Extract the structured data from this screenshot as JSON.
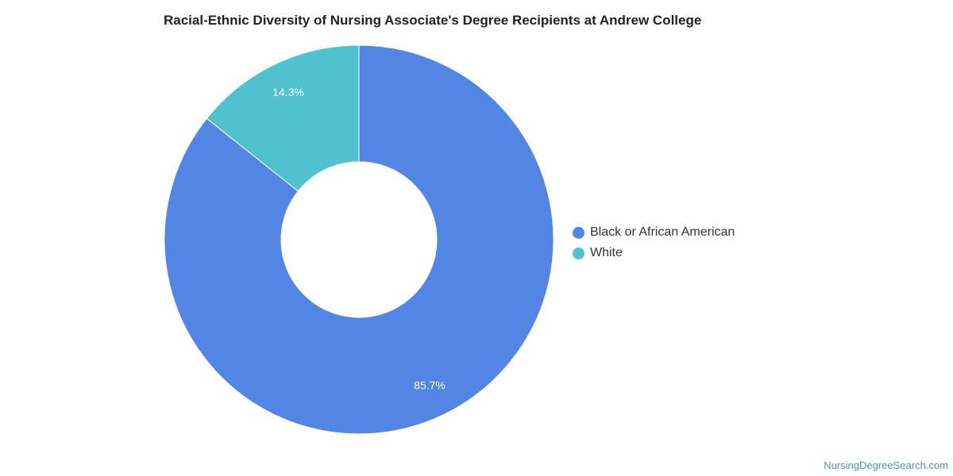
{
  "chart_data": {
    "type": "pie",
    "title": "Racial-Ethnic Diversity of Nursing Associate's Degree Recipients at Andrew College",
    "categories": [
      "Black or African American",
      "White"
    ],
    "values": [
      85.7,
      14.3
    ],
    "labels": [
      "85.7%",
      "14.3%"
    ],
    "colors": [
      "#5386e4",
      "#50c1cf"
    ],
    "legend_position": "right",
    "style": "donut"
  },
  "footer": {
    "source": "NursingDegreeSearch.com"
  }
}
